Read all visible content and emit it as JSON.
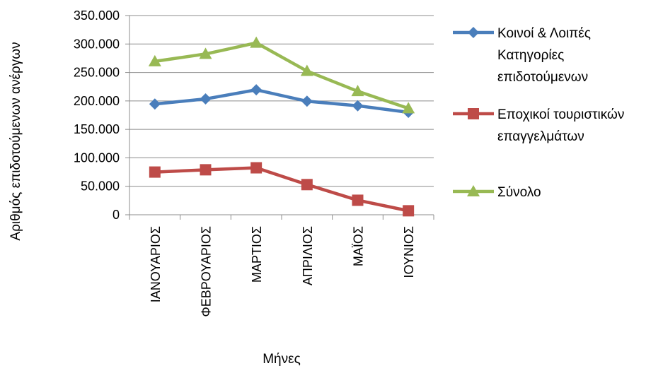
{
  "chart_data": {
    "type": "line",
    "title": "",
    "xlabel": "Μήνες",
    "ylabel": "Αριθμός επιδοτούμενων ανέργων",
    "categories": [
      "ΙΑΝΟΥΑΡΙΟΣ",
      "ΦΕΒΡΟΥΑΡΙΟΣ",
      "ΜΑΡΤΙΟΣ",
      "ΑΠΡΙΛΙΟΣ",
      "ΜΑΪΟΣ",
      "ΙΟΥΝΙΟΣ"
    ],
    "ylim": [
      0,
      350000
    ],
    "yticks": [
      0,
      50000,
      100000,
      150000,
      200000,
      250000,
      300000,
      350000
    ],
    "ytick_labels": [
      "0",
      "50.000",
      "100.000",
      "150.000",
      "200.000",
      "250.000",
      "300.000",
      "350.000"
    ],
    "grid": "horizontal",
    "legend_position": "right",
    "series": [
      {
        "name": "Κοινοί & Λοιπές Κατηγορίες επιδοτούμενων",
        "legend_lines": [
          "Κοινοί & Λοιπές",
          "Κατηγορίες",
          "επιδοτούμενων"
        ],
        "color": "#4a7ebb",
        "marker": "diamond",
        "values": [
          194500,
          203500,
          219500,
          199500,
          191500,
          180000
        ]
      },
      {
        "name": "Εποχικοί τουριστικών επαγγελμάτων",
        "legend_lines": [
          "Εποχικοί τουριστικών",
          "επαγγελμάτων"
        ],
        "color": "#be4b48",
        "marker": "square",
        "values": [
          75000,
          79000,
          82500,
          53000,
          25500,
          7000
        ]
      },
      {
        "name": "Σύνολο",
        "legend_lines": [
          "Σύνολο"
        ],
        "color": "#98b954",
        "marker": "triangle",
        "values": [
          269500,
          282500,
          302000,
          252500,
          217000,
          187000
        ]
      }
    ]
  }
}
